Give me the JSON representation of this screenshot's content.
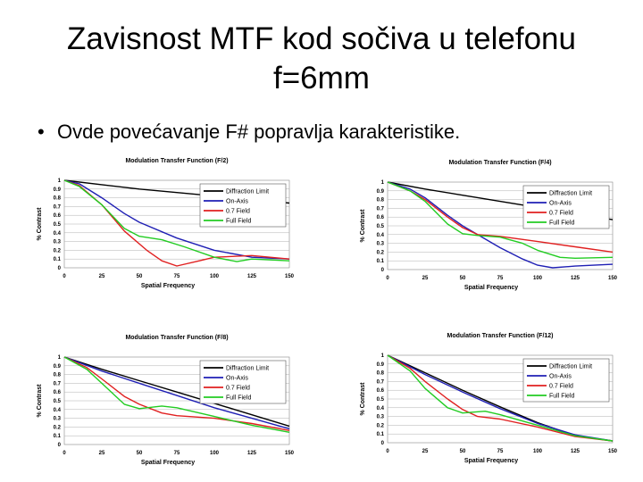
{
  "slide": {
    "title_line1": "Zavisnost MTF kod sočiva u telefonu",
    "title_line2": "f=6mm",
    "bullet": "Ovde povećavanje F# popravlja karakteristike."
  },
  "colors": {
    "diffraction": "#000000",
    "onaxis": "#1f1fb4",
    "field07": "#e02020",
    "fullfield": "#22cc22",
    "grid": "#b0b0b0"
  },
  "chart_data": [
    {
      "type": "line",
      "title": "Modulation Transfer Function (F/2)",
      "xlabel": "Spatial Frequency",
      "ylabel": "% Contrast",
      "xlim": [
        0,
        150
      ],
      "ylim": [
        0,
        1
      ],
      "x_ticks": [
        "0",
        "25",
        "50",
        "75",
        "100",
        "125",
        "150"
      ],
      "y_ticks": [
        "0",
        "0.1",
        "0.2",
        "0.3",
        "0.4",
        "0.5",
        "0.6",
        "0.7",
        "0.8",
        "0.9",
        "1"
      ],
      "legend": [
        "Diffraction Limit",
        "On-Axis",
        "0.7 Field",
        "Full Field"
      ],
      "series": [
        {
          "name": "Diffraction Limit",
          "points": [
            [
              0,
              1
            ],
            [
              25,
              0.95
            ],
            [
              50,
              0.9
            ],
            [
              75,
              0.86
            ],
            [
              100,
              0.82
            ],
            [
              125,
              0.78
            ],
            [
              150,
              0.74
            ]
          ]
        },
        {
          "name": "On-Axis",
          "points": [
            [
              0,
              1
            ],
            [
              10,
              0.96
            ],
            [
              25,
              0.8
            ],
            [
              40,
              0.62
            ],
            [
              50,
              0.52
            ],
            [
              75,
              0.34
            ],
            [
              100,
              0.2
            ],
            [
              125,
              0.12
            ],
            [
              150,
              0.1
            ]
          ]
        },
        {
          "name": "0.7 Field",
          "points": [
            [
              0,
              1
            ],
            [
              10,
              0.94
            ],
            [
              25,
              0.72
            ],
            [
              40,
              0.42
            ],
            [
              55,
              0.2
            ],
            [
              65,
              0.08
            ],
            [
              75,
              0.02
            ],
            [
              90,
              0.08
            ],
            [
              100,
              0.12
            ],
            [
              125,
              0.14
            ],
            [
              150,
              0.1
            ]
          ]
        },
        {
          "name": "Full Field",
          "points": [
            [
              0,
              1
            ],
            [
              10,
              0.93
            ],
            [
              25,
              0.72
            ],
            [
              40,
              0.45
            ],
            [
              50,
              0.36
            ],
            [
              65,
              0.32
            ],
            [
              80,
              0.24
            ],
            [
              100,
              0.12
            ],
            [
              115,
              0.07
            ],
            [
              125,
              0.1
            ],
            [
              150,
              0.08
            ]
          ]
        }
      ]
    },
    {
      "type": "line",
      "title": "Modulation Transfer Function (F/4)",
      "xlabel": "Spatial Frequency",
      "ylabel": "% Contrast",
      "xlim": [
        0,
        150
      ],
      "ylim": [
        0,
        1
      ],
      "x_ticks": [
        "0",
        "25",
        "50",
        "75",
        "100",
        "125",
        "150"
      ],
      "y_ticks": [
        "0",
        "0.1",
        "0.2",
        "0.3",
        "0.4",
        "0.5",
        "0.6",
        "0.7",
        "0.8",
        "0.9",
        "1"
      ],
      "legend": [
        "Diffraction Limit",
        "On-Axis",
        "0.7 Field",
        "Full Field"
      ],
      "series": [
        {
          "name": "Diffraction Limit",
          "points": [
            [
              0,
              1
            ],
            [
              25,
              0.92
            ],
            [
              50,
              0.85
            ],
            [
              75,
              0.78
            ],
            [
              100,
              0.71
            ],
            [
              125,
              0.64
            ],
            [
              150,
              0.57
            ]
          ]
        },
        {
          "name": "On-Axis",
          "points": [
            [
              0,
              1
            ],
            [
              15,
              0.92
            ],
            [
              25,
              0.82
            ],
            [
              40,
              0.62
            ],
            [
              50,
              0.5
            ],
            [
              75,
              0.25
            ],
            [
              90,
              0.12
            ],
            [
              100,
              0.05
            ],
            [
              110,
              0.02
            ],
            [
              125,
              0.04
            ],
            [
              150,
              0.06
            ]
          ]
        },
        {
          "name": "0.7 Field",
          "points": [
            [
              0,
              1
            ],
            [
              15,
              0.9
            ],
            [
              25,
              0.8
            ],
            [
              40,
              0.6
            ],
            [
              50,
              0.48
            ],
            [
              60,
              0.4
            ],
            [
              75,
              0.38
            ],
            [
              100,
              0.32
            ],
            [
              125,
              0.26
            ],
            [
              150,
              0.2
            ]
          ]
        },
        {
          "name": "Full Field",
          "points": [
            [
              0,
              1
            ],
            [
              15,
              0.9
            ],
            [
              25,
              0.78
            ],
            [
              40,
              0.52
            ],
            [
              50,
              0.41
            ],
            [
              60,
              0.39
            ],
            [
              75,
              0.37
            ],
            [
              90,
              0.3
            ],
            [
              100,
              0.22
            ],
            [
              115,
              0.14
            ],
            [
              125,
              0.13
            ],
            [
              150,
              0.14
            ]
          ]
        }
      ]
    },
    {
      "type": "line",
      "title": "Modulation Transfer Function (F/8)",
      "xlabel": "Spatial Frequency",
      "ylabel": "% Contrast",
      "xlim": [
        0,
        150
      ],
      "ylim": [
        0,
        1
      ],
      "x_ticks": [
        "0",
        "25",
        "50",
        "75",
        "100",
        "125",
        "150"
      ],
      "y_ticks": [
        "0",
        "0.1",
        "0.2",
        "0.3",
        "0.4",
        "0.5",
        "0.6",
        "0.7",
        "0.8",
        "0.9",
        "1"
      ],
      "legend": [
        "Diffraction Limit",
        "On-Axis",
        "0.7 Field",
        "Full Field"
      ],
      "series": [
        {
          "name": "Diffraction Limit",
          "points": [
            [
              0,
              1
            ],
            [
              25,
              0.86
            ],
            [
              50,
              0.73
            ],
            [
              75,
              0.6
            ],
            [
              100,
              0.47
            ],
            [
              125,
              0.34
            ],
            [
              150,
              0.21
            ]
          ]
        },
        {
          "name": "On-Axis",
          "points": [
            [
              0,
              1
            ],
            [
              25,
              0.84
            ],
            [
              50,
              0.7
            ],
            [
              75,
              0.56
            ],
            [
              100,
              0.42
            ],
            [
              125,
              0.3
            ],
            [
              150,
              0.18
            ]
          ]
        },
        {
          "name": "0.7 Field",
          "points": [
            [
              0,
              1
            ],
            [
              15,
              0.88
            ],
            [
              25,
              0.75
            ],
            [
              40,
              0.55
            ],
            [
              50,
              0.46
            ],
            [
              65,
              0.36
            ],
            [
              75,
              0.33
            ],
            [
              100,
              0.3
            ],
            [
              125,
              0.24
            ],
            [
              150,
              0.16
            ]
          ]
        },
        {
          "name": "Full Field",
          "points": [
            [
              0,
              1
            ],
            [
              15,
              0.86
            ],
            [
              25,
              0.7
            ],
            [
              40,
              0.46
            ],
            [
              50,
              0.41
            ],
            [
              65,
              0.44
            ],
            [
              75,
              0.42
            ],
            [
              100,
              0.32
            ],
            [
              125,
              0.22
            ],
            [
              150,
              0.14
            ]
          ]
        }
      ]
    },
    {
      "type": "line",
      "title": "Modulation Transfer Function (F/12)",
      "xlabel": "Spatial Frequency",
      "ylabel": "% Contrast",
      "xlim": [
        0,
        150
      ],
      "ylim": [
        0,
        1
      ],
      "x_ticks": [
        "0",
        "25",
        "50",
        "75",
        "100",
        "125",
        "150"
      ],
      "y_ticks": [
        "0",
        "0.1",
        "0.2",
        "0.3",
        "0.4",
        "0.5",
        "0.6",
        "0.7",
        "0.8",
        "0.9",
        "1"
      ],
      "legend": [
        "Diffraction Limit",
        "On-Axis",
        "0.7 Field",
        "Full Field"
      ],
      "series": [
        {
          "name": "Diffraction Limit",
          "points": [
            [
              0,
              1
            ],
            [
              25,
              0.8
            ],
            [
              50,
              0.6
            ],
            [
              75,
              0.41
            ],
            [
              100,
              0.23
            ],
            [
              125,
              0.08
            ],
            [
              150,
              0.02
            ]
          ]
        },
        {
          "name": "On-Axis",
          "points": [
            [
              0,
              1
            ],
            [
              25,
              0.78
            ],
            [
              50,
              0.58
            ],
            [
              75,
              0.39
            ],
            [
              100,
              0.22
            ],
            [
              125,
              0.09
            ],
            [
              150,
              0.02
            ]
          ]
        },
        {
          "name": "0.7 Field",
          "points": [
            [
              0,
              1
            ],
            [
              15,
              0.85
            ],
            [
              25,
              0.7
            ],
            [
              40,
              0.5
            ],
            [
              50,
              0.38
            ],
            [
              60,
              0.3
            ],
            [
              75,
              0.27
            ],
            [
              100,
              0.18
            ],
            [
              125,
              0.07
            ],
            [
              150,
              0.02
            ]
          ]
        },
        {
          "name": "Full Field",
          "points": [
            [
              0,
              1
            ],
            [
              15,
              0.82
            ],
            [
              25,
              0.62
            ],
            [
              40,
              0.4
            ],
            [
              50,
              0.34
            ],
            [
              65,
              0.36
            ],
            [
              75,
              0.32
            ],
            [
              100,
              0.2
            ],
            [
              125,
              0.08
            ],
            [
              150,
              0.02
            ]
          ]
        }
      ]
    }
  ]
}
